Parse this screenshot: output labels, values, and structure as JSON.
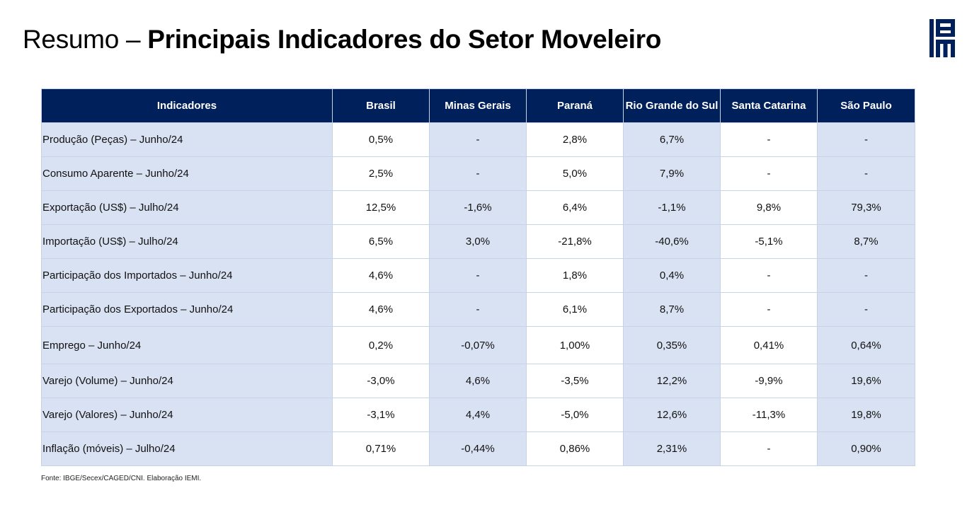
{
  "page": {
    "title_light": "Resumo – ",
    "title_bold": "Principais Indicadores do Setor Moveleiro",
    "logo_text": "IEMI",
    "source_note": "Fonte: IBGE/Secex/CAGED/CNI. Elaboração IEMI."
  },
  "colors": {
    "header_bg": "#00205b",
    "shaded_cell": "#d9e2f3",
    "border": "#c7d3e6"
  },
  "table": {
    "headers": [
      "Indicadores",
      "Brasil",
      "Minas Gerais",
      "Paraná",
      "Rio Grande do Sul",
      "Santa Catarina",
      "São Paulo"
    ],
    "rows": [
      {
        "label": "Produção (Peças) – Junho/24",
        "values": [
          "0,5%",
          "-",
          "2,8%",
          "6,7%",
          "-",
          "-"
        ]
      },
      {
        "label": "Consumo Aparente – Junho/24",
        "values": [
          "2,5%",
          "-",
          "5,0%",
          "7,9%",
          "-",
          "-"
        ]
      },
      {
        "label": "Exportação (US$) – Julho/24",
        "values": [
          "12,5%",
          "-1,6%",
          "6,4%",
          "-1,1%",
          "9,8%",
          "79,3%"
        ]
      },
      {
        "label": "Importação (US$) – Julho/24",
        "values": [
          "6,5%",
          "3,0%",
          "-21,8%",
          "-40,6%",
          "-5,1%",
          "8,7%"
        ]
      },
      {
        "label": "Participação dos Importados – Junho/24",
        "values": [
          "4,6%",
          "-",
          "1,8%",
          "0,4%",
          "-",
          "-"
        ]
      },
      {
        "label": "Participação dos Exportados – Junho/24",
        "values": [
          "4,6%",
          "-",
          "6,1%",
          "8,7%",
          "-",
          "-"
        ]
      },
      {
        "label": "Emprego – Junho/24",
        "values": [
          "0,2%",
          "-0,07%",
          "1,00%",
          "0,35%",
          "0,41%",
          "0,64%"
        ]
      },
      {
        "label": "Varejo (Volume) – Junho/24",
        "values": [
          "-3,0%",
          "4,6%",
          "-3,5%",
          "12,2%",
          "-9,9%",
          "19,6%"
        ]
      },
      {
        "label": "Varejo (Valores) – Junho/24",
        "values": [
          "-3,1%",
          "4,4%",
          "-5,0%",
          "12,6%",
          "-11,3%",
          "19,8%"
        ]
      },
      {
        "label": "Inflação (móveis)  – Julho/24",
        "values": [
          "0,71%",
          "-0,44%",
          "0,86%",
          "2,31%",
          "-",
          "0,90%"
        ]
      }
    ]
  }
}
